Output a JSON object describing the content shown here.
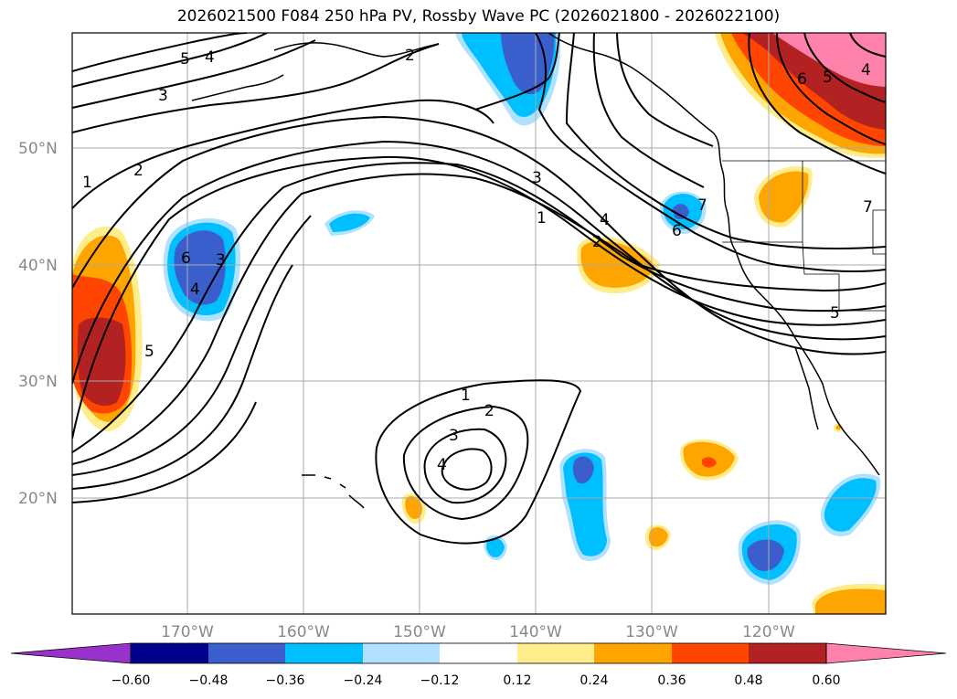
{
  "title": "2026021500 F084 250 hPa PV, Rossby Wave PC (2026021800 - 2026022100)",
  "map": {
    "lat_labels": [
      "50°N",
      "40°N",
      "30°N",
      "20°N"
    ],
    "lon_labels": [
      "170°W",
      "160°W",
      "150°W",
      "140°W",
      "130°W",
      "120°W"
    ],
    "contour_labels": [
      "5",
      "4",
      "3",
      "2",
      "1",
      "6",
      "4",
      "3",
      "5",
      "2",
      "3",
      "1",
      "4",
      "2",
      "6",
      "7",
      "1",
      "2",
      "3",
      "4",
      "6",
      "5",
      "4",
      "7",
      "5"
    ]
  },
  "colorbar": {
    "ticks": [
      "−0.60",
      "−0.48",
      "−0.36",
      "−0.24",
      "−0.12",
      "0.12",
      "0.24",
      "0.36",
      "0.48",
      "0.60"
    ],
    "colors": [
      "#9932cc",
      "#00008b",
      "#3a5fcd",
      "#00bfff",
      "#b0e2ff",
      "#ffffff",
      "#ffec8b",
      "#ffa500",
      "#ff4500",
      "#b22222",
      "#ff82ab"
    ]
  }
}
